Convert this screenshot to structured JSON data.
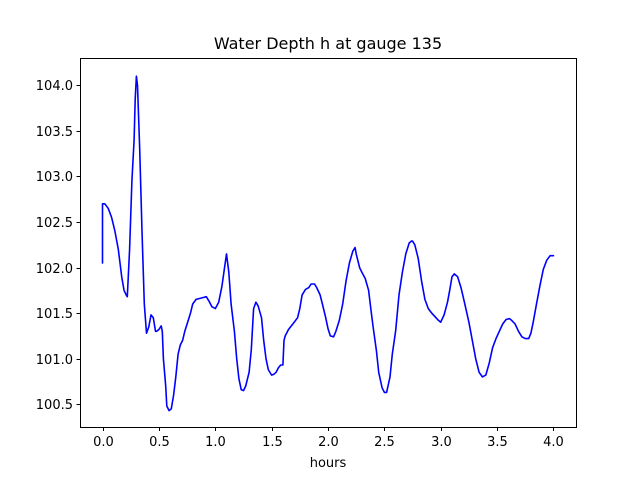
{
  "chart_data": {
    "type": "line",
    "title": "Water Depth h at gauge 135",
    "xlabel": "hours",
    "ylabel": "",
    "xlim": [
      -0.2,
      4.2
    ],
    "ylim": [
      100.25,
      104.3
    ],
    "xticks": [
      0.0,
      0.5,
      1.0,
      1.5,
      2.0,
      2.5,
      3.0,
      3.5,
      4.0
    ],
    "xtick_labels": [
      "0.0",
      "0.5",
      "1.0",
      "1.5",
      "2.0",
      "2.5",
      "3.0",
      "3.5",
      "4.0"
    ],
    "yticks": [
      100.5,
      101.0,
      101.5,
      102.0,
      102.5,
      103.0,
      103.5,
      104.0
    ],
    "ytick_labels": [
      "100.5",
      "101.0",
      "101.5",
      "102.0",
      "102.5",
      "103.0",
      "103.5",
      "104.0"
    ],
    "grid": false,
    "series": [
      {
        "color": "#0000ff",
        "x": [
          0.0,
          0.0,
          0.02,
          0.05,
          0.08,
          0.11,
          0.14,
          0.17,
          0.19,
          0.21,
          0.22,
          0.24,
          0.26,
          0.28,
          0.29,
          0.3,
          0.31,
          0.33,
          0.35,
          0.37,
          0.39,
          0.41,
          0.43,
          0.45,
          0.47,
          0.48,
          0.5,
          0.52,
          0.53,
          0.54,
          0.56,
          0.57,
          0.59,
          0.61,
          0.63,
          0.65,
          0.67,
          0.69,
          0.71,
          0.73,
          0.75,
          0.78,
          0.8,
          0.83,
          0.86,
          0.89,
          0.92,
          0.95,
          0.97,
          1.0,
          1.03,
          1.06,
          1.08,
          1.1,
          1.12,
          1.14,
          1.17,
          1.19,
          1.21,
          1.23,
          1.25,
          1.27,
          1.3,
          1.32,
          1.34,
          1.36,
          1.38,
          1.41,
          1.43,
          1.45,
          1.47,
          1.5,
          1.52,
          1.54,
          1.56,
          1.58,
          1.6,
          1.61,
          1.62,
          1.65,
          1.7,
          1.73,
          1.75,
          1.77,
          1.8,
          1.83,
          1.85,
          1.88,
          1.9,
          1.93,
          1.95,
          1.98,
          2.0,
          2.02,
          2.05,
          2.07,
          2.1,
          2.13,
          2.16,
          2.19,
          2.22,
          2.24,
          2.25,
          2.28,
          2.3,
          2.33,
          2.36,
          2.38,
          2.4,
          2.43,
          2.45,
          2.48,
          2.5,
          2.52,
          2.55,
          2.57,
          2.6,
          2.63,
          2.66,
          2.69,
          2.72,
          2.74,
          2.75,
          2.77,
          2.8,
          2.83,
          2.86,
          2.89,
          2.92,
          2.95,
          2.98,
          3.0,
          3.03,
          3.06,
          3.08,
          3.1,
          3.12,
          3.15,
          3.18,
          3.21,
          3.25,
          3.28,
          3.31,
          3.34,
          3.37,
          3.4,
          3.43,
          3.46,
          3.49,
          3.52,
          3.55,
          3.58,
          3.61,
          3.63,
          3.66,
          3.69,
          3.72,
          3.75,
          3.78,
          3.8,
          3.82,
          3.85,
          3.88,
          3.91,
          3.94,
          3.97,
          4.0
        ],
        "y": [
          102.05,
          102.7,
          102.7,
          102.65,
          102.55,
          102.4,
          102.2,
          101.9,
          101.75,
          101.7,
          101.68,
          102.2,
          102.95,
          103.4,
          103.85,
          104.1,
          104.0,
          103.3,
          102.4,
          101.6,
          101.28,
          101.35,
          101.48,
          101.45,
          101.3,
          101.3,
          101.32,
          101.36,
          101.3,
          101.0,
          100.7,
          100.48,
          100.43,
          100.45,
          100.6,
          100.8,
          101.05,
          101.15,
          101.2,
          101.3,
          101.38,
          101.5,
          101.6,
          101.65,
          101.66,
          101.67,
          101.68,
          101.62,
          101.57,
          101.55,
          101.62,
          101.8,
          101.98,
          102.15,
          101.95,
          101.6,
          101.3,
          101.0,
          100.78,
          100.66,
          100.65,
          100.7,
          100.85,
          101.1,
          101.55,
          101.62,
          101.58,
          101.45,
          101.2,
          101.0,
          100.88,
          100.82,
          100.83,
          100.85,
          100.9,
          100.93,
          100.93,
          101.2,
          101.25,
          101.32,
          101.4,
          101.45,
          101.55,
          101.7,
          101.76,
          101.78,
          101.82,
          101.82,
          101.78,
          101.7,
          101.6,
          101.45,
          101.33,
          101.25,
          101.24,
          101.3,
          101.42,
          101.6,
          101.85,
          102.05,
          102.18,
          102.22,
          102.15,
          102.0,
          101.95,
          101.88,
          101.75,
          101.55,
          101.35,
          101.08,
          100.85,
          100.68,
          100.63,
          100.63,
          100.8,
          101.05,
          101.3,
          101.7,
          101.95,
          102.15,
          102.27,
          102.29,
          102.29,
          102.25,
          102.1,
          101.85,
          101.65,
          101.55,
          101.5,
          101.46,
          101.42,
          101.4,
          101.48,
          101.62,
          101.75,
          101.9,
          101.93,
          101.9,
          101.78,
          101.62,
          101.4,
          101.2,
          101.0,
          100.85,
          100.8,
          100.82,
          100.95,
          101.12,
          101.22,
          101.3,
          101.38,
          101.43,
          101.44,
          101.42,
          101.38,
          101.3,
          101.24,
          101.22,
          101.22,
          101.28,
          101.4,
          101.6,
          101.8,
          101.98,
          102.08,
          102.13,
          102.13
        ]
      }
    ]
  }
}
